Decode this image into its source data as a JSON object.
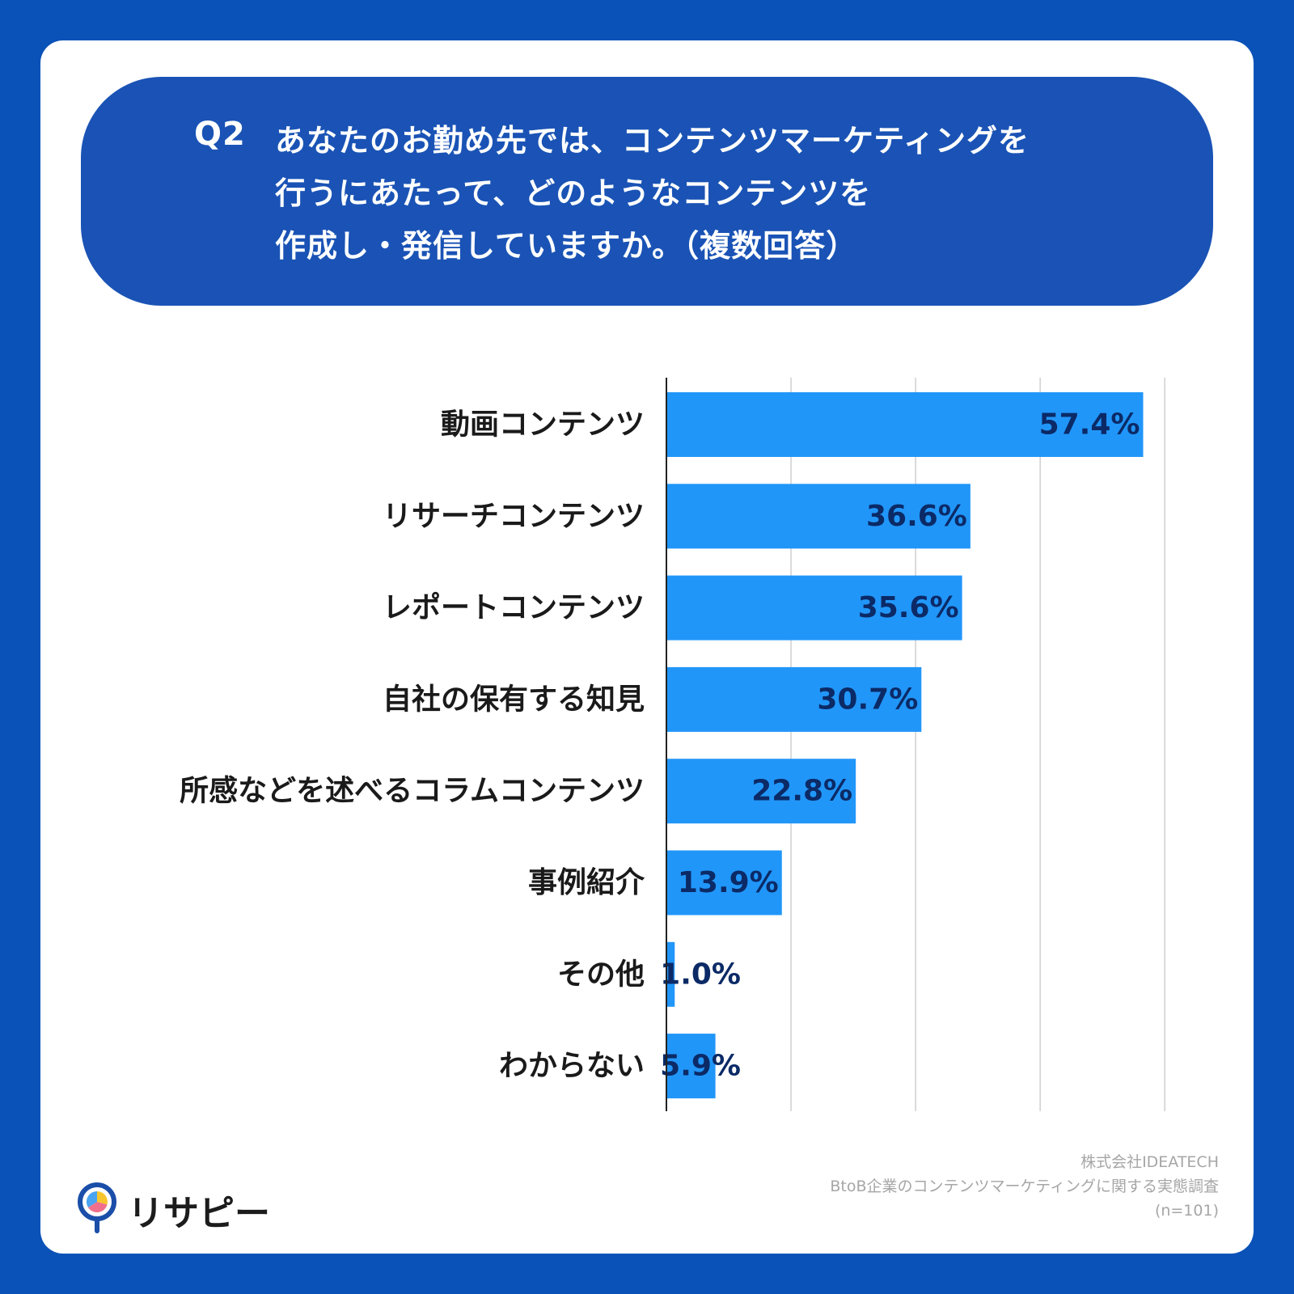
{
  "question": {
    "label": "Q2",
    "lines": [
      "あなたのお勤め先では、コンテンツマーケティングを",
      "行うにあたって、どのようなコンテンツを",
      "作成し・発信していますか。（複数回答）"
    ]
  },
  "chart_data": {
    "type": "bar",
    "orientation": "horizontal",
    "categories": [
      "動画コンテンツ",
      "リサーチコンテンツ",
      "レポートコンテンツ",
      "自社の保有する知見",
      "所感などを述べるコラムコンテンツ",
      "事例紹介",
      "その他",
      "わからない"
    ],
    "values": [
      57.4,
      36.6,
      35.6,
      30.7,
      22.8,
      13.9,
      1.0,
      5.9
    ],
    "value_labels": [
      "57.4%",
      "36.6%",
      "35.6%",
      "30.7%",
      "22.8%",
      "13.9%",
      "1.0%",
      "5.9%"
    ],
    "xlim": [
      0,
      60
    ],
    "grid": true,
    "bar_color": "#2196f9",
    "label_color": "#0b2a66"
  },
  "footer": {
    "company": "株式会社IDEATECH",
    "survey": "BtoB企業のコンテンツマーケティングに関する実態調査",
    "sample": "(n=101)"
  },
  "logo": {
    "text": "リサピー"
  },
  "colors": {
    "background": "#0b52b8",
    "question_box": "#1a53b5",
    "bar": "#2196f9"
  }
}
